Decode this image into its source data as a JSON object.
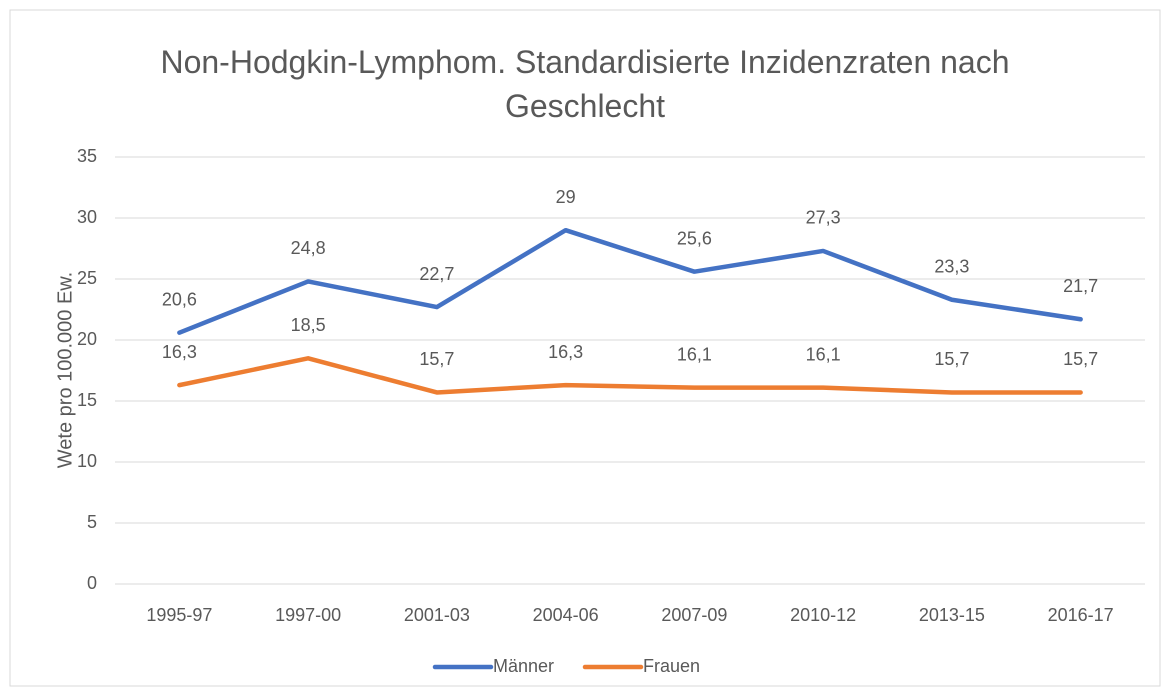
{
  "chart_data": {
    "type": "line",
    "title": "Non-Hodgkin-Lymphom. Standardisierte Inzidenzraten nach Geschlecht",
    "y_label": "Wete pro 100.000 Ew.",
    "categories": [
      "1995-97",
      "1997-00",
      "2001-03",
      "2004-06",
      "2007-09",
      "2010-12",
      "2013-15",
      "2016-17"
    ],
    "series": [
      {
        "name": "Männer",
        "color": "#4472c4",
        "values": [
          20.6,
          24.8,
          22.7,
          29,
          25.6,
          27.3,
          23.3,
          21.7
        ],
        "value_labels": [
          "20,6",
          "24,8",
          "22,7",
          "29",
          "25,6",
          "27,3",
          "23,3",
          "21,7"
        ]
      },
      {
        "name": "Frauen",
        "color": "#ed7d31",
        "values": [
          16.3,
          18.5,
          15.7,
          16.3,
          16.1,
          16.1,
          15.7,
          15.7
        ],
        "value_labels": [
          "16,3",
          "18,5",
          "15,7",
          "16,3",
          "16,1",
          "16,1",
          "15,7",
          "15,7"
        ]
      }
    ],
    "ylim": [
      0,
      35
    ],
    "yticks": [
      0,
      5,
      10,
      15,
      20,
      25,
      30,
      35
    ],
    "grid": true,
    "legend": "bottom"
  }
}
